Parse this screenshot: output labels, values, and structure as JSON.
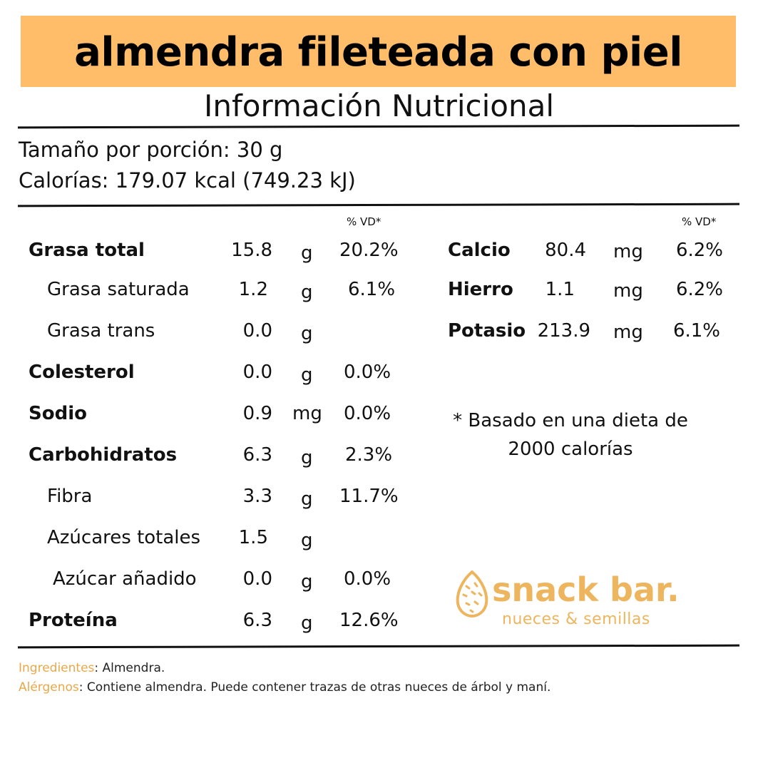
{
  "title": "almendra fileteada con piel",
  "subtitle": "Información Nutricional",
  "serving": {
    "size": "Tamaño por porción: 30 g",
    "calories": "Calorías: 179.07 kcal (749.23 kJ)"
  },
  "vd_header": "% VD*",
  "left_nutrients": [
    {
      "name": "Grasa total",
      "amount": "15.8",
      "unit": "g",
      "vd": "20.2%"
    },
    {
      "name": "Grasa saturada",
      "amount": "1.2",
      "unit": "g",
      "vd": "6.1%"
    },
    {
      "name": "Grasa trans",
      "amount": "0.0",
      "unit": "g",
      "vd": ""
    },
    {
      "name": "Colesterol",
      "amount": "0.0",
      "unit": "g",
      "vd": "0.0%"
    },
    {
      "name": "Sodio",
      "amount": "0.9",
      "unit": "mg",
      "vd": "0.0%"
    },
    {
      "name": "Carbohidratos",
      "amount": "6.3",
      "unit": "g",
      "vd": "2.3%"
    },
    {
      "name": "Fibra",
      "amount": "3.3",
      "unit": "g",
      "vd": "11.7%"
    },
    {
      "name": "Azúcares totales",
      "amount": "1.5",
      "unit": "g",
      "vd": ""
    },
    {
      "name": "Azúcar añadido",
      "amount": "0.0",
      "unit": "g",
      "vd": "0.0%"
    },
    {
      "name": "Proteína",
      "amount": "6.3",
      "unit": "g",
      "vd": "12.6%"
    }
  ],
  "right_nutrients": [
    {
      "name": "Calcio",
      "amount": "80.4",
      "unit": "mg",
      "vd": "6.2%"
    },
    {
      "name": "Hierro",
      "amount": "1.1",
      "unit": "mg",
      "vd": "6.2%"
    },
    {
      "name": "Potasio",
      "amount": "213.9",
      "unit": "mg",
      "vd": "6.1%"
    }
  ],
  "footnote": "* Basado en una dieta de 2000 calorías",
  "brand": {
    "name": "snack bar.",
    "tagline": "nueces & semillas",
    "icon": "almond-icon"
  },
  "ingredients": {
    "label": "Ingredientes",
    "text": ": Almendra."
  },
  "allergens": {
    "label": "Alérgenos",
    "text": ": Contiene almendra. Puede contener trazas de otras nueces de árbol y maní."
  },
  "colors": {
    "banner": "#FFBC69",
    "accent": "#EDB55E",
    "text": "#111111"
  }
}
